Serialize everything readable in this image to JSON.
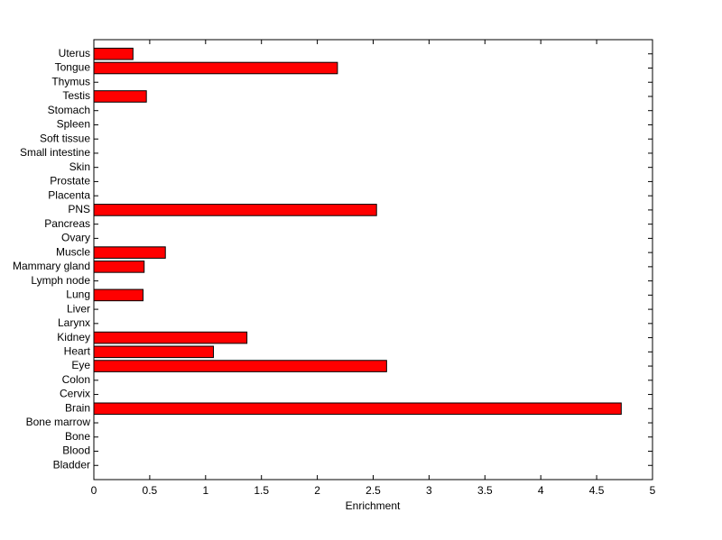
{
  "chart_data": {
    "type": "barh",
    "xlabel": "Enrichment",
    "categories": [
      "Bladder",
      "Blood",
      "Bone",
      "Bone marrow",
      "Brain",
      "Cervix",
      "Colon",
      "Eye",
      "Heart",
      "Kidney",
      "Larynx",
      "Liver",
      "Lung",
      "Lymph node",
      "Mammary gland",
      "Muscle",
      "Ovary",
      "Pancreas",
      "PNS",
      "Placenta",
      "Prostate",
      "Skin",
      "Small intestine",
      "Soft tissue",
      "Spleen",
      "Stomach",
      "Testis",
      "Thymus",
      "Tongue",
      "Uterus"
    ],
    "values": [
      0,
      0,
      0,
      0,
      4.72,
      0,
      0,
      2.62,
      1.07,
      1.37,
      0,
      0,
      0.44,
      0,
      0.45,
      0.64,
      0,
      0,
      2.53,
      0,
      0,
      0,
      0,
      0,
      0,
      0,
      0.47,
      0,
      2.18,
      0.35
    ],
    "color": "#ff0000",
    "xlim": [
      0,
      5
    ],
    "xticks": [
      0,
      0.5,
      1,
      1.5,
      2,
      2.5,
      3,
      3.5,
      4,
      4.5,
      5
    ],
    "grid": false
  }
}
